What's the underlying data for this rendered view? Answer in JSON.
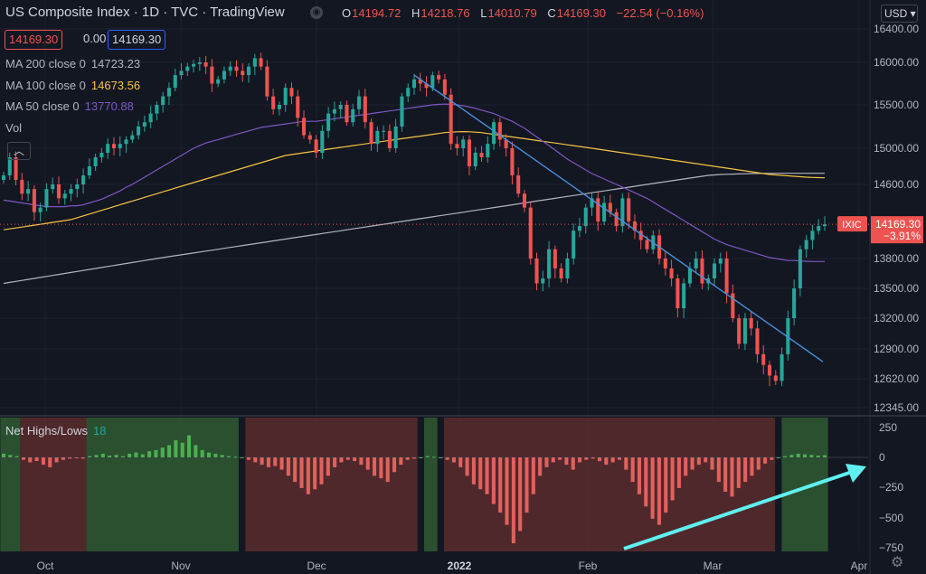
{
  "header": {
    "title": "US Composite Index · 1D · TVC · TradingView",
    "ohlc": [
      {
        "k": "O",
        "v": "14194.72"
      },
      {
        "k": "H",
        "v": "14218.76"
      },
      {
        "k": "L",
        "v": "14010.79"
      },
      {
        "k": "C",
        "v": "14169.30"
      }
    ],
    "change": "−22.54 (−0.16%)",
    "price_box_1": "14169.30",
    "price_box_0": "0.00",
    "price_box_2": "14169.30",
    "currency": "USD"
  },
  "indicators": {
    "ma200": {
      "label": "MA 200 close 0",
      "value": "14723.23",
      "color": "#b2b5be"
    },
    "ma100": {
      "label": "MA 100 close 0",
      "value": "14673.56",
      "color": "#f6c343"
    },
    "ma50": {
      "label": "MA 50 close 0",
      "value": "13770.88",
      "color": "#7e57c2"
    },
    "vol": "Vol",
    "net_hl": {
      "label": "Net Highs/Lows",
      "value": "18"
    }
  },
  "colors": {
    "up": "#26a69a",
    "down": "#ef5350",
    "trend": "#4a90d9",
    "arrow": "#5ff0f0",
    "green_zone": "#2f5b33",
    "red_zone": "#5b2b2e"
  },
  "chart_data": [
    {
      "type": "candlestick",
      "title": "US Composite Index",
      "x_ticks": [
        "Oct",
        "Nov",
        "Dec",
        "2022",
        "Feb",
        "Mar",
        "Apr"
      ],
      "y_ticks": [
        "16400.00",
        "16000.00",
        "15500.00",
        "15000.00",
        "14600.00",
        "13800.00",
        "13500.00",
        "13200.00",
        "12900.00",
        "12620.00",
        "12345.00"
      ],
      "last_label": {
        "symbol": "IXIC",
        "price": "14169.30",
        "pct": "−3.91%"
      },
      "closes": [
        14700,
        14900,
        14650,
        14500,
        14550,
        14300,
        14350,
        14550,
        14600,
        14450,
        14500,
        14550,
        14600,
        14700,
        14800,
        14900,
        14950,
        15050,
        15000,
        15050,
        15100,
        15150,
        15250,
        15300,
        15400,
        15500,
        15600,
        15700,
        15850,
        15900,
        15950,
        15980,
        16000,
        15950,
        15750,
        15800,
        15900,
        15950,
        15900,
        15850,
        15950,
        16050,
        15950,
        15600,
        15450,
        15500,
        15700,
        15600,
        15350,
        15150,
        15100,
        14950,
        15200,
        15400,
        15450,
        15500,
        15300,
        15450,
        15600,
        15300,
        15050,
        15200,
        15200,
        15000,
        15250,
        15600,
        15700,
        15800,
        15750,
        15700,
        15850,
        15800,
        15620,
        15050,
        15000,
        15100,
        14800,
        14950,
        14900,
        15050,
        15300,
        15100,
        15000,
        14700,
        14500,
        14350,
        13800,
        13550,
        13600,
        13900,
        13700,
        13600,
        13800,
        14100,
        14150,
        14350,
        14450,
        14200,
        14400,
        14300,
        14150,
        14450,
        14200,
        14100,
        14000,
        13900,
        14050,
        13800,
        13700,
        13600,
        13300,
        13550,
        13700,
        13800,
        13550,
        13600,
        13750,
        13800,
        13450,
        13200,
        12950,
        13200,
        13100,
        12850,
        12750,
        12650,
        12600,
        12850,
        13200,
        13500,
        13900,
        14000,
        14100,
        14150,
        14169
      ],
      "ma50": [
        14430,
        14420,
        14410,
        14400,
        14390,
        14380,
        14370,
        14360,
        14360,
        14360,
        14360,
        14370,
        14370,
        14380,
        14400,
        14420,
        14440,
        14470,
        14500,
        14530,
        14570,
        14600,
        14640,
        14680,
        14720,
        14760,
        14800,
        14840,
        14880,
        14920,
        14960,
        15000,
        15030,
        15060,
        15080,
        15100,
        15120,
        15140,
        15160,
        15180,
        15200,
        15220,
        15240,
        15250,
        15260,
        15270,
        15280,
        15290,
        15300,
        15310,
        15310,
        15310,
        15320,
        15330,
        15340,
        15350,
        15360,
        15370,
        15380,
        15390,
        15400,
        15410,
        15420,
        15430,
        15440,
        15450,
        15460,
        15470,
        15480,
        15490,
        15500,
        15505,
        15510,
        15505,
        15500,
        15490,
        15475,
        15460,
        15440,
        15420,
        15400,
        15370,
        15340,
        15310,
        15270,
        15230,
        15180,
        15130,
        15080,
        15030,
        14980,
        14930,
        14880,
        14840,
        14800,
        14760,
        14720,
        14690,
        14660,
        14630,
        14600,
        14570,
        14540,
        14510,
        14480,
        14450,
        14410,
        14370,
        14330,
        14290,
        14250,
        14210,
        14170,
        14130,
        14090,
        14050,
        14010,
        13980,
        13950,
        13930,
        13910,
        13890,
        13870,
        13850,
        13830,
        13810,
        13800,
        13790,
        13780,
        13780,
        13775,
        13772,
        13770,
        13770,
        13770
      ],
      "ma100": [
        14110,
        14120,
        14130,
        14140,
        14150,
        14160,
        14170,
        14180,
        14190,
        14200,
        14210,
        14220,
        14240,
        14260,
        14280,
        14300,
        14320,
        14340,
        14360,
        14380,
        14400,
        14420,
        14440,
        14460,
        14480,
        14500,
        14520,
        14540,
        14560,
        14580,
        14600,
        14620,
        14640,
        14660,
        14680,
        14700,
        14720,
        14740,
        14760,
        14780,
        14800,
        14820,
        14840,
        14860,
        14880,
        14900,
        14920,
        14930,
        14940,
        14950,
        14960,
        14970,
        14980,
        14990,
        15000,
        15010,
        15020,
        15030,
        15040,
        15050,
        15060,
        15070,
        15080,
        15090,
        15100,
        15110,
        15120,
        15130,
        15140,
        15150,
        15160,
        15170,
        15180,
        15185,
        15190,
        15192,
        15190,
        15185,
        15180,
        15170,
        15160,
        15150,
        15140,
        15130,
        15120,
        15110,
        15100,
        15090,
        15080,
        15070,
        15060,
        15050,
        15040,
        15030,
        15020,
        15010,
        15000,
        14990,
        14980,
        14970,
        14960,
        14950,
        14940,
        14930,
        14920,
        14910,
        14900,
        14890,
        14880,
        14870,
        14860,
        14850,
        14840,
        14830,
        14820,
        14810,
        14800,
        14790,
        14780,
        14770,
        14760,
        14750,
        14740,
        14730,
        14720,
        14710,
        14705,
        14700,
        14695,
        14690,
        14685,
        14680,
        14677,
        14675,
        14673
      ],
      "ma200": [
        13550,
        13560,
        13570,
        13580,
        13590,
        13600,
        13610,
        13620,
        13630,
        13640,
        13650,
        13660,
        13670,
        13680,
        13690,
        13700,
        13710,
        13720,
        13730,
        13740,
        13750,
        13760,
        13770,
        13780,
        13790,
        13800,
        13810,
        13820,
        13830,
        13840,
        13850,
        13860,
        13870,
        13880,
        13890,
        13900,
        13910,
        13920,
        13930,
        13940,
        13950,
        13960,
        13970,
        13980,
        13990,
        14000,
        14010,
        14020,
        14030,
        14040,
        14050,
        14060,
        14070,
        14080,
        14090,
        14100,
        14110,
        14120,
        14130,
        14140,
        14150,
        14160,
        14170,
        14180,
        14190,
        14200,
        14210,
        14220,
        14230,
        14240,
        14250,
        14260,
        14270,
        14280,
        14290,
        14300,
        14310,
        14320,
        14330,
        14340,
        14350,
        14360,
        14370,
        14380,
        14390,
        14400,
        14410,
        14420,
        14430,
        14440,
        14450,
        14460,
        14470,
        14480,
        14490,
        14500,
        14510,
        14520,
        14530,
        14540,
        14550,
        14560,
        14570,
        14580,
        14590,
        14600,
        14610,
        14620,
        14630,
        14640,
        14650,
        14660,
        14670,
        14680,
        14690,
        14700,
        14705,
        14710,
        14712,
        14714,
        14716,
        14718,
        14720,
        14721,
        14722,
        14722,
        14723,
        14723,
        14723,
        14723,
        14723,
        14723,
        14723,
        14723,
        14723
      ]
    },
    {
      "type": "bar",
      "title": "Net Highs/Lows",
      "y_ticks": [
        "250",
        "0",
        "−250",
        "−500",
        "−750"
      ],
      "values": [
        30,
        20,
        10,
        -20,
        -40,
        -30,
        -60,
        -80,
        -40,
        -20,
        -10,
        -5,
        -10,
        10,
        20,
        30,
        15,
        20,
        10,
        30,
        40,
        25,
        50,
        60,
        80,
        100,
        140,
        120,
        180,
        100,
        60,
        40,
        30,
        20,
        10,
        5,
        0,
        -20,
        -40,
        -60,
        -80,
        -70,
        -100,
        -150,
        -200,
        -250,
        -300,
        -260,
        -220,
        -150,
        -80,
        -40,
        -20,
        -30,
        -60,
        -100,
        -150,
        -170,
        -200,
        -120,
        -60,
        -20,
        -10,
        0,
        10,
        5,
        0,
        -20,
        -40,
        -80,
        -150,
        -220,
        -260,
        -300,
        -380,
        -450,
        -550,
        -700,
        -600,
        -450,
        -300,
        -150,
        -80,
        -40,
        -20,
        -60,
        -100,
        -40,
        -20,
        -10,
        -30,
        -60,
        -40,
        -20,
        -100,
        -200,
        -300,
        -400,
        -500,
        -550,
        -450,
        -350,
        -250,
        -150,
        -100,
        -60,
        -40,
        -100,
        -200,
        -280,
        -320,
        -250,
        -200,
        -150,
        -100,
        -50,
        -20,
        0,
        10,
        20,
        30,
        25,
        20,
        15,
        18
      ]
    }
  ]
}
